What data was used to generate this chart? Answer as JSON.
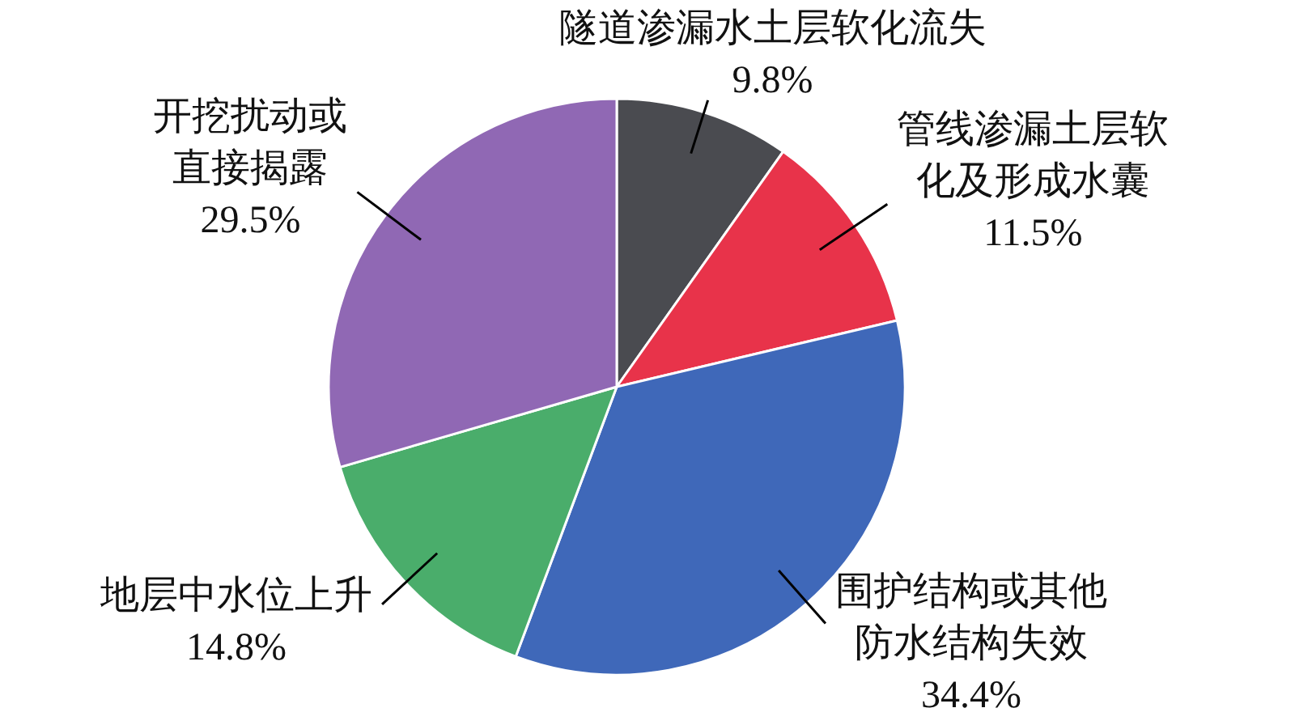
{
  "chart_data": {
    "type": "pie",
    "categories": [
      "隧道渗漏水土层软化流失",
      "管线渗漏土层软化及形成水囊",
      "围护结构或其他防水结构失效",
      "地层中水位上升",
      "开挖扰动或直接揭露"
    ],
    "values": [
      9.8,
      11.5,
      34.4,
      14.8,
      29.5
    ],
    "value_labels": [
      "9.8%",
      "11.5%",
      "34.4%",
      "14.8%",
      "29.5%"
    ],
    "colors": [
      "#4a4b50",
      "#e8334a",
      "#3f68b9",
      "#4aad6b",
      "#9068b4"
    ]
  }
}
